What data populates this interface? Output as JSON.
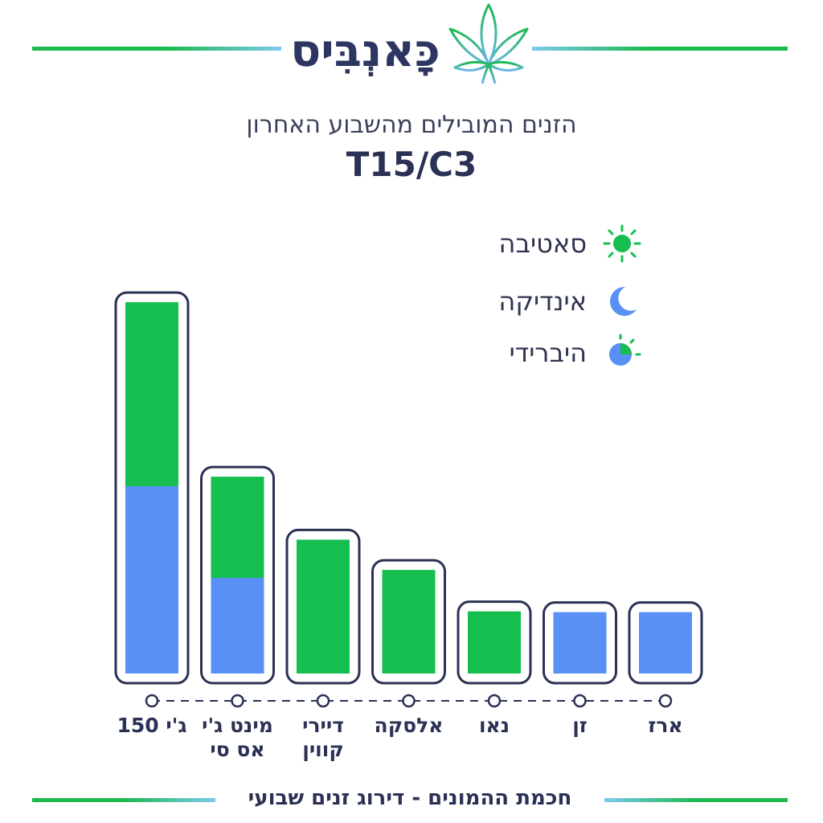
{
  "header": {
    "brand": "כָּאנְבִּיס",
    "subtitle": "הזנים המובילים מהשבוע האחרון",
    "title": "T15/C3"
  },
  "legend": [
    {
      "label": "סאטיבה",
      "icon": "sun-icon",
      "color": "#16bd4f"
    },
    {
      "label": "אינדיקה",
      "icon": "moon-icon",
      "color": "#5890f6"
    },
    {
      "label": "היברידי",
      "icon": "half-sun-moon-icon",
      "color": "#16bd4f"
    }
  ],
  "chart_data": {
    "type": "bar",
    "stacked": true,
    "categories": [
      "ג'י 150",
      "מינט ג'י אס סי",
      "דיירי קווין",
      "אלסקה",
      "נאו",
      "זן",
      "ארז"
    ],
    "series": [
      {
        "name": "אינדיקה",
        "color": "#5890f6",
        "values": [
          235,
          120,
          0,
          0,
          0,
          77,
          77
        ]
      },
      {
        "name": "סאטיבה",
        "color": "#16bd4f",
        "values": [
          231,
          127,
          168,
          130,
          78,
          0,
          0
        ]
      }
    ],
    "ylim": [
      0,
      470
    ],
    "grid": false,
    "legend_position": "top-right"
  },
  "x_labels": [
    {
      "line1": "ג'י 150",
      "line2": ""
    },
    {
      "line1": "מינט ג'י",
      "line2": "אס סי"
    },
    {
      "line1": "דיירי",
      "line2": "קווין"
    },
    {
      "line1": "אלסקה",
      "line2": ""
    },
    {
      "line1": "נאו",
      "line2": ""
    },
    {
      "line1": "זן",
      "line2": ""
    },
    {
      "line1": "ארז",
      "line2": ""
    }
  ],
  "footer": {
    "text": "חכמת ההמונים - דירוג זנים שבועי"
  }
}
